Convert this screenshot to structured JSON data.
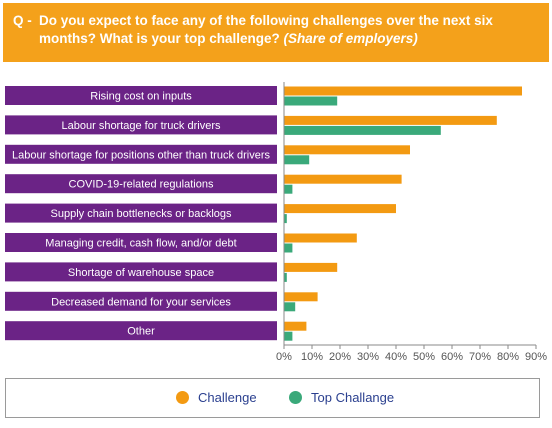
{
  "header": {
    "prefix": "Q -",
    "question": "Do you expect to face any of the following challenges over the next six months? What is your top challenge? ",
    "question_emphasis": "(Share of employers)"
  },
  "colors": {
    "header_bg": "#f4a11b",
    "label_bg": "#6b2386",
    "challenge": "#f39a12",
    "top_challenge": "#3aa97a"
  },
  "chart_data": {
    "type": "bar",
    "orientation": "horizontal",
    "categories": [
      "Rising cost on inputs",
      "Labour shortage for truck drivers",
      "Labour shortage for positions other than truck drivers",
      "COVID-19-related regulations",
      "Supply chain bottlenecks or backlogs",
      "Managing credit, cash flow, and/or debt",
      "Shortage of warehouse space",
      "Decreased demand for your services",
      "Other"
    ],
    "series": [
      {
        "name": "Challenge",
        "values": [
          85,
          76,
          45,
          42,
          40,
          26,
          19,
          12,
          8
        ]
      },
      {
        "name": "Top Challange",
        "values": [
          19,
          56,
          9,
          3,
          1,
          3,
          1,
          4,
          3
        ]
      }
    ],
    "xlim": [
      0,
      90
    ],
    "ticks": [
      "0%",
      "10%",
      "20%",
      "30%",
      "40%",
      "50%",
      "60%",
      "70%",
      "80%",
      "90%"
    ],
    "grid": false,
    "legend_position": "bottom"
  }
}
